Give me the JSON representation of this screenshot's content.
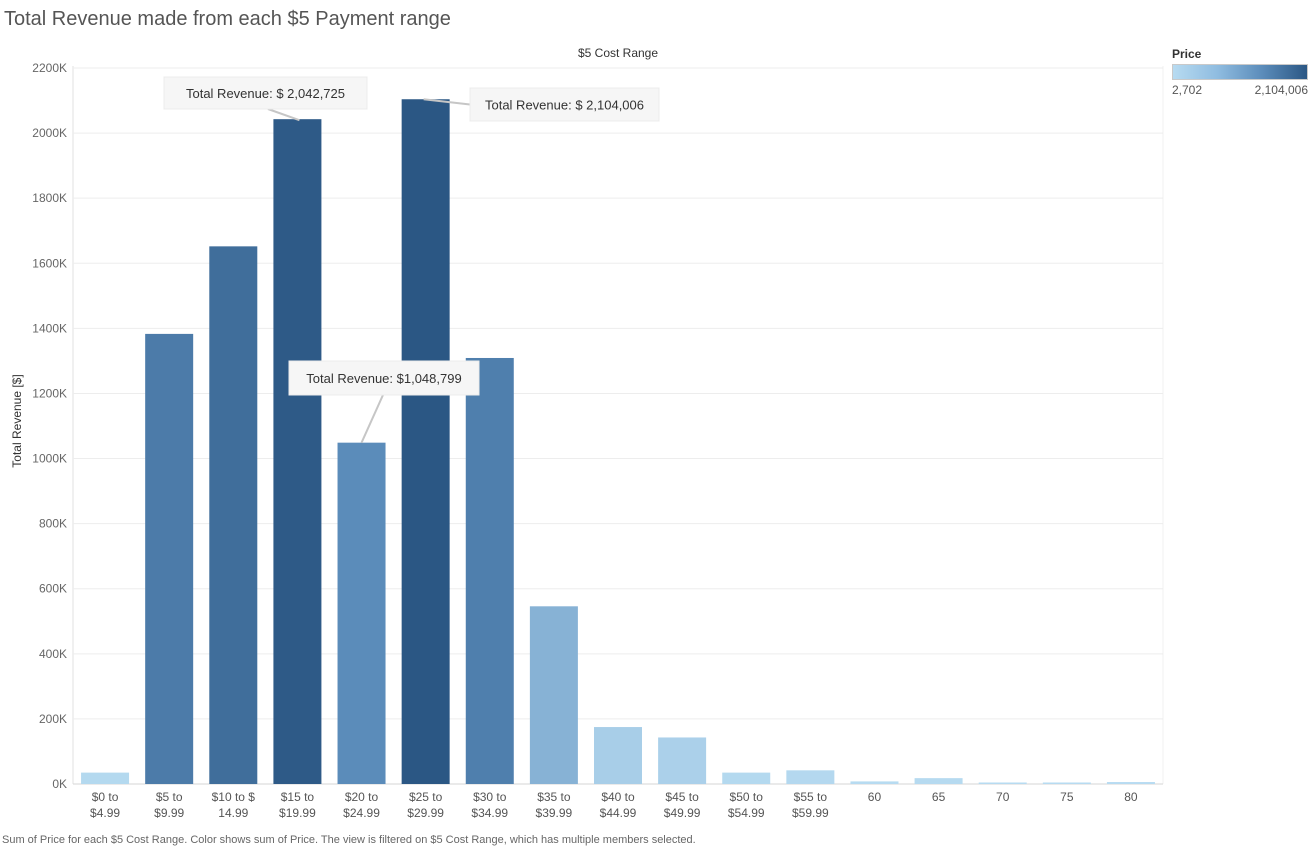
{
  "page_title": "Total Revenue made from each $5 Payment range",
  "footer_note": "Sum of Price for each $5 Cost Range.  Color shows sum of Price. The view is filtered on $5 Cost Range, which has multiple members selected.",
  "legend": {
    "title": "Price",
    "min_label": "2,702",
    "max_label": "2,104,006"
  },
  "colors": {
    "low": "#b7dbf1",
    "mid": "#5b8cba",
    "high": "#2b5784",
    "grid": "#ededed"
  },
  "chart_data": {
    "type": "bar",
    "title": "$5 Cost Range",
    "xlabel": "",
    "ylabel": "Total Revenue [$]",
    "ylim": [
      0,
      2200000
    ],
    "y_ticks": [
      0,
      200000,
      400000,
      600000,
      800000,
      1000000,
      1200000,
      1400000,
      1600000,
      1800000,
      2000000,
      2200000
    ],
    "y_tick_labels": [
      "0K",
      "200K",
      "400K",
      "600K",
      "800K",
      "1000K",
      "1200K",
      "1400K",
      "1600K",
      "1800K",
      "2000K",
      "2200K"
    ],
    "categories": [
      [
        "$0 to",
        "$4.99"
      ],
      [
        "$5 to",
        "$9.99"
      ],
      [
        "$10 to $",
        "14.99"
      ],
      [
        "$15 to",
        "$19.99"
      ],
      [
        "$20 to",
        "$24.99"
      ],
      [
        "$25 to",
        "$29.99"
      ],
      [
        "$30 to",
        "$34.99"
      ],
      [
        "$35 to",
        "$39.99"
      ],
      [
        "$40 to",
        "$44.99"
      ],
      [
        "$45 to",
        "$49.99"
      ],
      [
        "$50 to",
        "$54.99"
      ],
      [
        "$55 to",
        "$59.99"
      ],
      [
        "60"
      ],
      [
        "65"
      ],
      [
        "70"
      ],
      [
        "75"
      ],
      [
        "80"
      ]
    ],
    "values": [
      35000,
      1383000,
      1652000,
      2042725,
      1048799,
      2104006,
      1309000,
      546000,
      175000,
      143000,
      35000,
      42000,
      8000,
      18000,
      4000,
      2702,
      6000
    ],
    "grid": true,
    "legend_placement": "top-right",
    "annotations": [
      {
        "category_index": 3,
        "text": "Total Revenue: $ 2,042,725"
      },
      {
        "category_index": 5,
        "text": "Total Revenue: $ 2,104,006"
      },
      {
        "category_index": 4,
        "text": "Total Revenue: $1,048,799"
      }
    ]
  }
}
